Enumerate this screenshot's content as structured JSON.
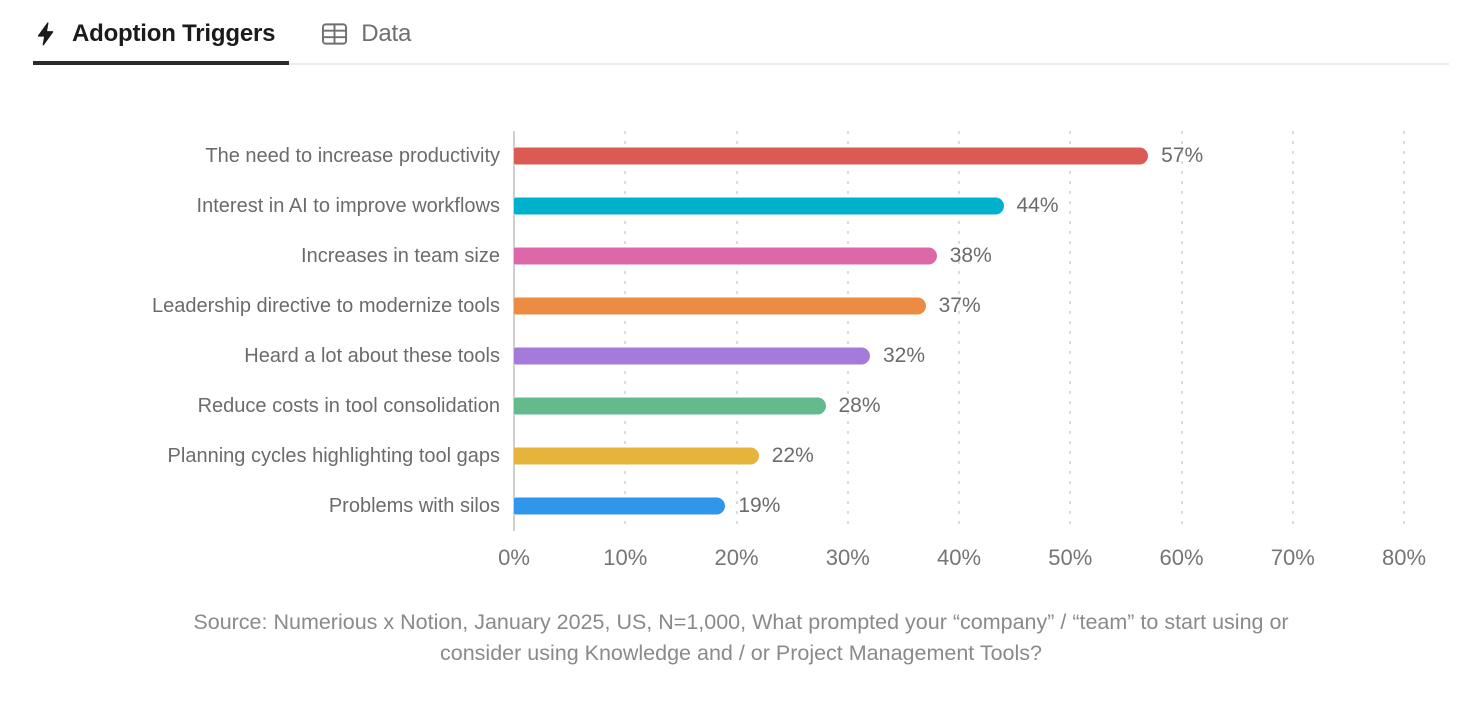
{
  "tabs": [
    {
      "label": "Adoption Triggers",
      "icon": "lightning-icon",
      "active": true
    },
    {
      "label": "Data",
      "icon": "table-icon",
      "active": false
    }
  ],
  "chart_data": {
    "type": "bar",
    "orientation": "horizontal",
    "title": "Adoption Triggers",
    "categories": [
      "The need to increase productivity",
      "Interest in AI to improve workflows",
      "Increases in team size",
      "Leadership directive to modernize tools",
      "Heard a lot about these tools",
      "Reduce costs in tool consolidation",
      "Planning cycles highlighting tool gaps",
      "Problems with silos"
    ],
    "values": [
      57,
      44,
      38,
      37,
      32,
      28,
      22,
      19
    ],
    "value_labels": [
      "57%",
      "44%",
      "38%",
      "37%",
      "32%",
      "28%",
      "22%",
      "19%"
    ],
    "bar_colors": [
      "#db5b54",
      "#00b1ce",
      "#dc68a9",
      "#ec8b42",
      "#a47bdb",
      "#63ba8b",
      "#e6b43b",
      "#3096e9"
    ],
    "xlim": [
      0,
      80
    ],
    "xticks": [
      {
        "value": 0,
        "label": "0%"
      },
      {
        "value": 10,
        "label": "10%"
      },
      {
        "value": 20,
        "label": "20%"
      },
      {
        "value": 30,
        "label": "30%"
      },
      {
        "value": 40,
        "label": "40%"
      },
      {
        "value": 50,
        "label": "50%"
      },
      {
        "value": 60,
        "label": "60%"
      },
      {
        "value": 70,
        "label": "70%"
      },
      {
        "value": 80,
        "label": "80%"
      }
    ],
    "grid": "vertical-dotted",
    "legend": "none"
  },
  "source": {
    "lines": [
      "Source: Numerious x Notion, January 2025, US, N=1,000, What prompted your “company” / “team” to start using or",
      "consider using Knowledge and / or Project Management Tools?"
    ]
  },
  "colors": {
    "active_tab_text": "#1b1b1b",
    "inactive_tab_text": "#6f6f6f",
    "active_underline": "#2b2b2b",
    "divider": "#ececec",
    "label_text": "#6b6b6b",
    "tick_text": "#757575",
    "source_text": "#8a8a8a",
    "grid": "#dcdcdc"
  }
}
